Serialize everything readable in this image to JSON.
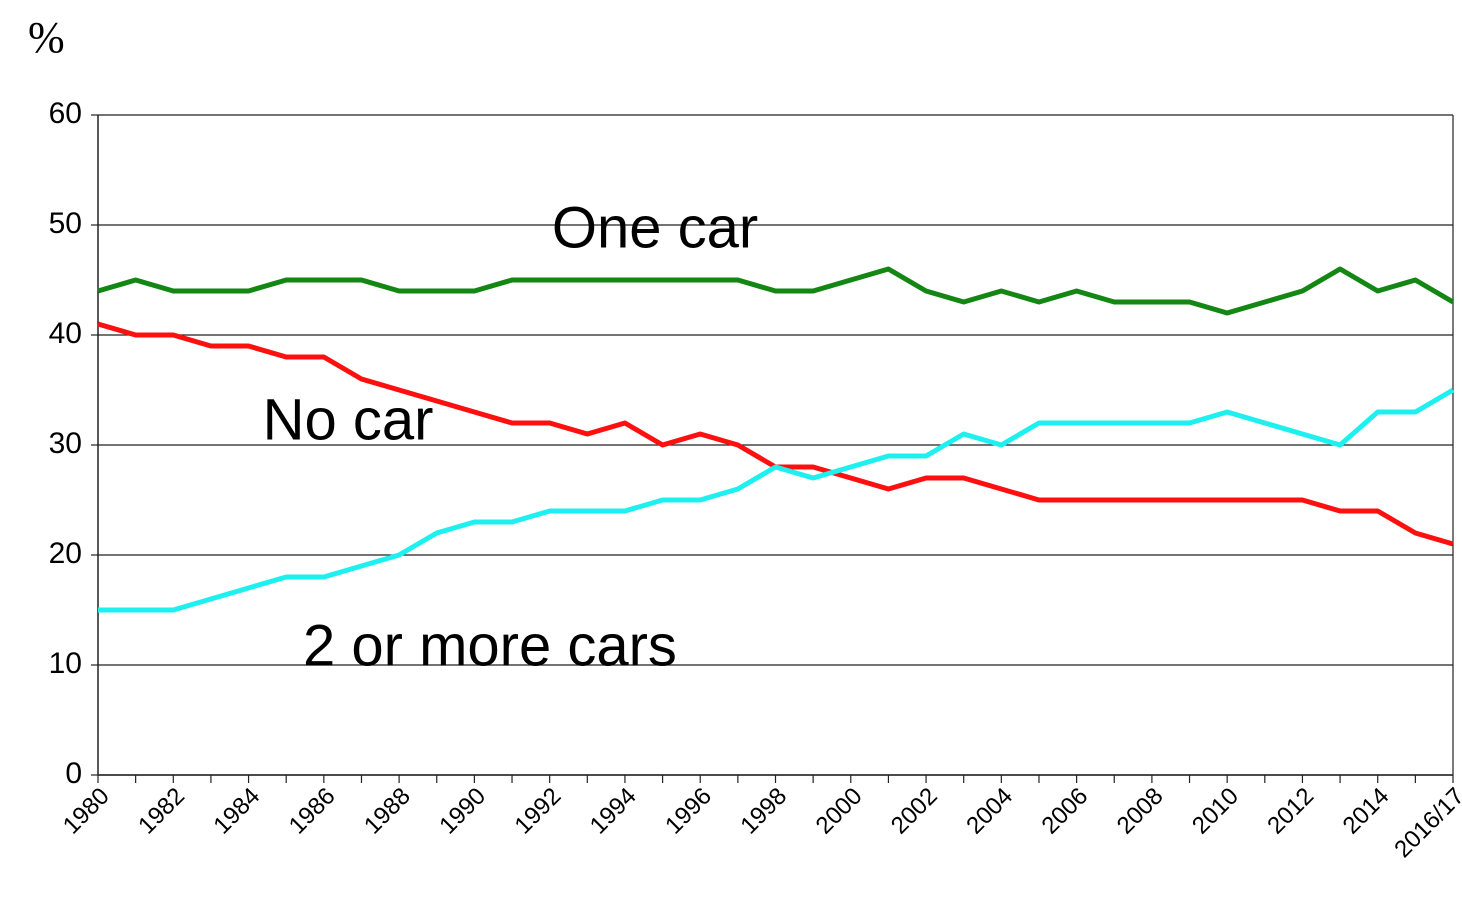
{
  "chart_data": {
    "type": "line",
    "y_label": "%",
    "categories": [
      "1980",
      null,
      "1982",
      null,
      "1984",
      null,
      "1986",
      null,
      "1988",
      null,
      "1990",
      null,
      "1992",
      null,
      "1994",
      null,
      "1996",
      null,
      "1998",
      null,
      "2000",
      null,
      "2002",
      null,
      "2004",
      null,
      "2006",
      null,
      "2008",
      null,
      "2010",
      null,
      "2012",
      null,
      "2014",
      null,
      "2016/17"
    ],
    "series": [
      {
        "name": "One car",
        "color": "#138613",
        "values": [
          44,
          45,
          44,
          44,
          44,
          45,
          45,
          45,
          44,
          44,
          44,
          45,
          45,
          45,
          45,
          45,
          45,
          45,
          44,
          44,
          45,
          46,
          44,
          43,
          44,
          43,
          44,
          43,
          43,
          43,
          42,
          43,
          44,
          46,
          44,
          45,
          43
        ]
      },
      {
        "name": "No car",
        "color": "#ff1010",
        "values": [
          41,
          40,
          40,
          39,
          39,
          38,
          38,
          36,
          35,
          34,
          33,
          32,
          32,
          31,
          32,
          30,
          31,
          30,
          28,
          28,
          27,
          26,
          27,
          27,
          26,
          25,
          25,
          25,
          25,
          25,
          25,
          25,
          25,
          24,
          24,
          22,
          21
        ]
      },
      {
        "name": "2 or more cars",
        "color": "#1ef0f0",
        "values": [
          15,
          15,
          15,
          16,
          17,
          18,
          18,
          19,
          20,
          22,
          23,
          23,
          24,
          24,
          24,
          25,
          25,
          26,
          28,
          27,
          28,
          29,
          29,
          31,
          30,
          32,
          32,
          32,
          32,
          32,
          33,
          32,
          31,
          30,
          33,
          33,
          35
        ]
      }
    ],
    "ylim": [
      0,
      60
    ],
    "yticks": [
      0,
      10,
      20,
      30,
      40,
      50,
      60
    ],
    "grid": true
  }
}
